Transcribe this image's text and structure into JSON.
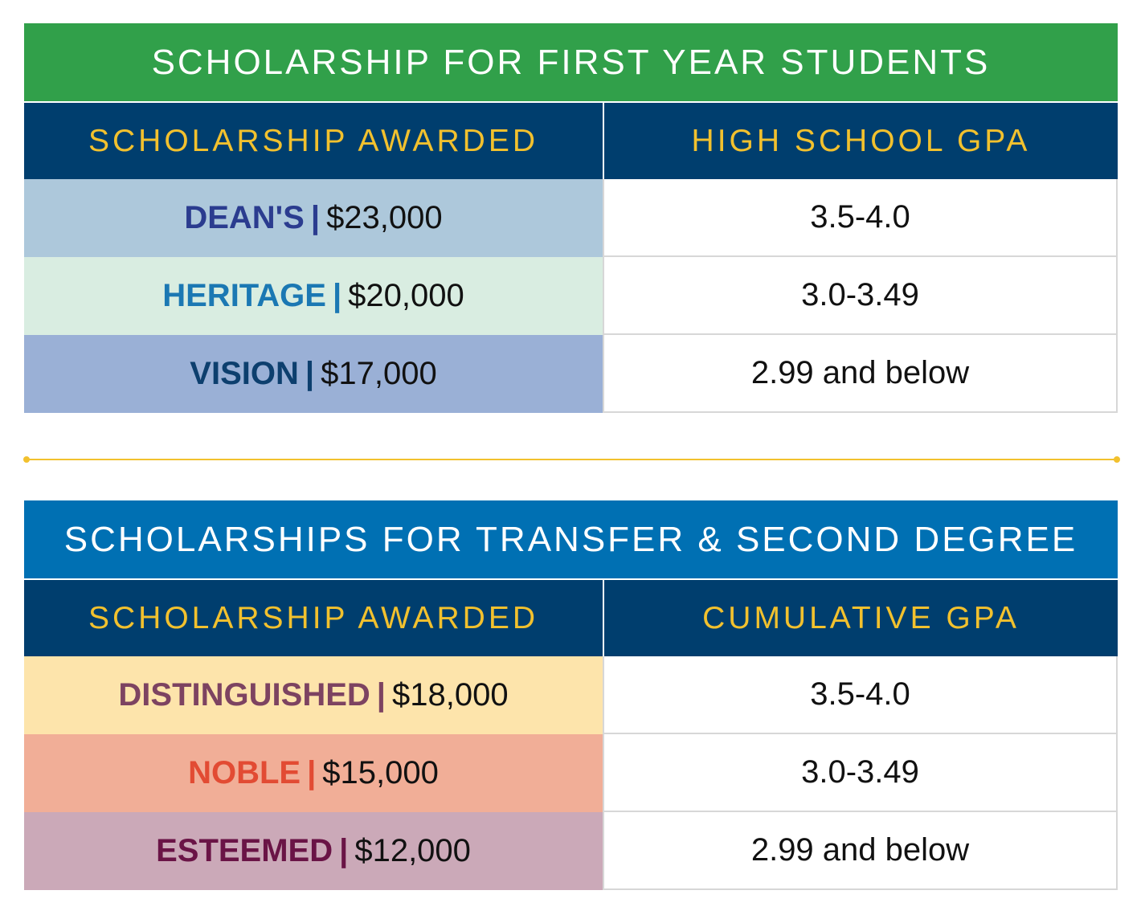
{
  "first_year": {
    "title": "SCHOLARSHIP FOR FIRST YEAR STUDENTS",
    "title_color": "#31a04a",
    "header": {
      "left": "SCHOLARSHIP AWARDED",
      "right": "HIGH SCHOOL GPA"
    },
    "rows": [
      {
        "name": "DEAN'S",
        "separator": "|",
        "amount": "$23,000",
        "gpa": "3.5-4.0",
        "bg": "#adc8db",
        "name_color": "#2b3c8f"
      },
      {
        "name": "HERITAGE",
        "separator": "|",
        "amount": "$20,000",
        "gpa": "3.0-3.49",
        "bg": "#d9ede1",
        "name_color": "#1b78b3"
      },
      {
        "name": "VISION",
        "separator": "|",
        "amount": "$17,000",
        "gpa": "2.99 and below",
        "bg": "#9ab0d6",
        "name_color": "#0d3f6e"
      }
    ]
  },
  "transfer": {
    "title": "SCHOLARSHIPS FOR TRANSFER & SECOND DEGREE",
    "title_color": "#0070b3",
    "header": {
      "left": "SCHOLARSHIP AWARDED",
      "right": "CUMULATIVE GPA"
    },
    "rows": [
      {
        "name": "DISTINGUISHED",
        "separator": "|",
        "amount": "$18,000",
        "gpa": "3.5-4.0",
        "bg": "#fde4ab",
        "name_color": "#7d4361"
      },
      {
        "name": "NOBLE",
        "separator": "|",
        "amount": "$15,000",
        "gpa": "3.0-3.49",
        "bg": "#f1ae97",
        "name_color": "#e24b33"
      },
      {
        "name": "ESTEEMED",
        "separator": "|",
        "amount": "$12,000",
        "gpa": "2.99 and below",
        "bg": "#cba9b8",
        "name_color": "#6a1446"
      }
    ]
  },
  "colors": {
    "header_bg": "#003e6e",
    "header_text": "#f2c12e",
    "divider": "#f2c12e"
  }
}
